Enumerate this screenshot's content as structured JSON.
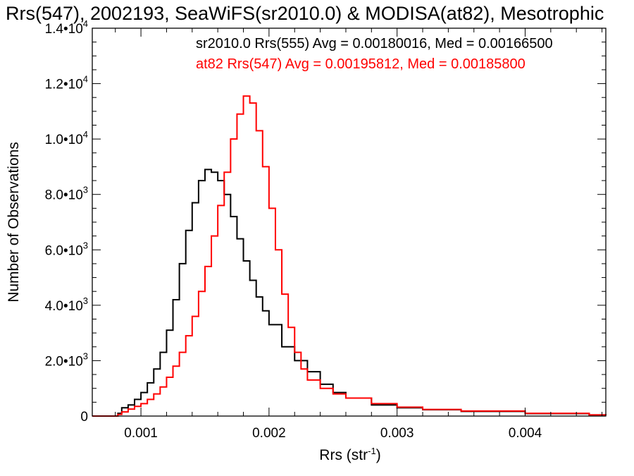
{
  "chart_data": {
    "type": "line",
    "title": "Rrs(547), 2002193, SeaWiFS(sr2010.0) & MODISA(at82), Mesotrophic",
    "xlabel": "Rrs (str",
    "xlabel_sup": "-1",
    "xlabel_end": ")",
    "ylabel": "Number of Observations",
    "xlim": [
      0.00062,
      0.00463
    ],
    "ylim": [
      0,
      14000
    ],
    "grid": false,
    "legend_placement": "top-right",
    "x_ticks": [
      {
        "value": 0.001,
        "label": "0.001"
      },
      {
        "value": 0.002,
        "label": "0.002"
      },
      {
        "value": 0.003,
        "label": "0.003"
      },
      {
        "value": 0.004,
        "label": "0.004"
      }
    ],
    "y_ticks": [
      {
        "value": 0,
        "mantissa": "0",
        "exp": ""
      },
      {
        "value": 2000,
        "mantissa": "2.0•10",
        "exp": "3"
      },
      {
        "value": 4000,
        "mantissa": "4.0•10",
        "exp": "3"
      },
      {
        "value": 6000,
        "mantissa": "6.0•10",
        "exp": "3"
      },
      {
        "value": 8000,
        "mantissa": "8.0•10",
        "exp": "3"
      },
      {
        "value": 10000,
        "mantissa": "1.0•10",
        "exp": "4"
      },
      {
        "value": 12000,
        "mantissa": "1.2•10",
        "exp": "4"
      },
      {
        "value": 14000,
        "mantissa": "1.4•10",
        "exp": "4"
      }
    ],
    "series": [
      {
        "name": "sr2010.0 Rrs(555) Avg = 0.00180016, Med = 0.00166500",
        "color": "#000000",
        "x": [
          0.00062,
          0.0008,
          0.00082,
          0.00085,
          0.0009,
          0.00095,
          0.001,
          0.00105,
          0.0011,
          0.00115,
          0.0012,
          0.00125,
          0.0013,
          0.00135,
          0.0014,
          0.00145,
          0.0015,
          0.00155,
          0.0016,
          0.00165,
          0.0017,
          0.00175,
          0.0018,
          0.00185,
          0.0019,
          0.00195,
          0.002,
          0.0021,
          0.0022,
          0.0023,
          0.0024,
          0.0025,
          0.0026,
          0.0028,
          0.003,
          0.0032,
          0.0035,
          0.004,
          0.0045,
          0.00463
        ],
        "y": [
          0,
          0,
          100,
          300,
          400,
          600,
          850,
          1200,
          1700,
          2300,
          3100,
          4200,
          5500,
          6700,
          7700,
          8500,
          8900,
          8800,
          8500,
          8000,
          7200,
          6400,
          5600,
          4900,
          4300,
          3800,
          3300,
          2500,
          2000,
          1600,
          1150,
          850,
          650,
          400,
          300,
          230,
          170,
          90,
          40,
          30
        ]
      },
      {
        "name": "at82 Rrs(547) Avg = 0.00195812, Med = 0.00185800",
        "color": "#ff0000",
        "x": [
          0.00062,
          0.0008,
          0.00082,
          0.00085,
          0.0009,
          0.00095,
          0.001,
          0.00105,
          0.0011,
          0.00115,
          0.0012,
          0.00125,
          0.0013,
          0.00135,
          0.0014,
          0.00145,
          0.0015,
          0.00155,
          0.0016,
          0.00165,
          0.0017,
          0.00175,
          0.0018,
          0.00185,
          0.0019,
          0.00195,
          0.002,
          0.00205,
          0.0021,
          0.00215,
          0.0022,
          0.00225,
          0.0023,
          0.0024,
          0.0025,
          0.0026,
          0.0028,
          0.003,
          0.0032,
          0.0035,
          0.004,
          0.0045,
          0.00463
        ],
        "y": [
          0,
          0,
          60,
          150,
          250,
          350,
          450,
          600,
          800,
          1050,
          1400,
          1800,
          2300,
          2900,
          3600,
          4500,
          5400,
          6500,
          7600,
          8800,
          10000,
          10900,
          11550,
          11300,
          10300,
          9000,
          7500,
          6000,
          4400,
          3200,
          2300,
          1700,
          1300,
          1000,
          800,
          650,
          450,
          320,
          240,
          180,
          100,
          40,
          30
        ]
      }
    ]
  }
}
